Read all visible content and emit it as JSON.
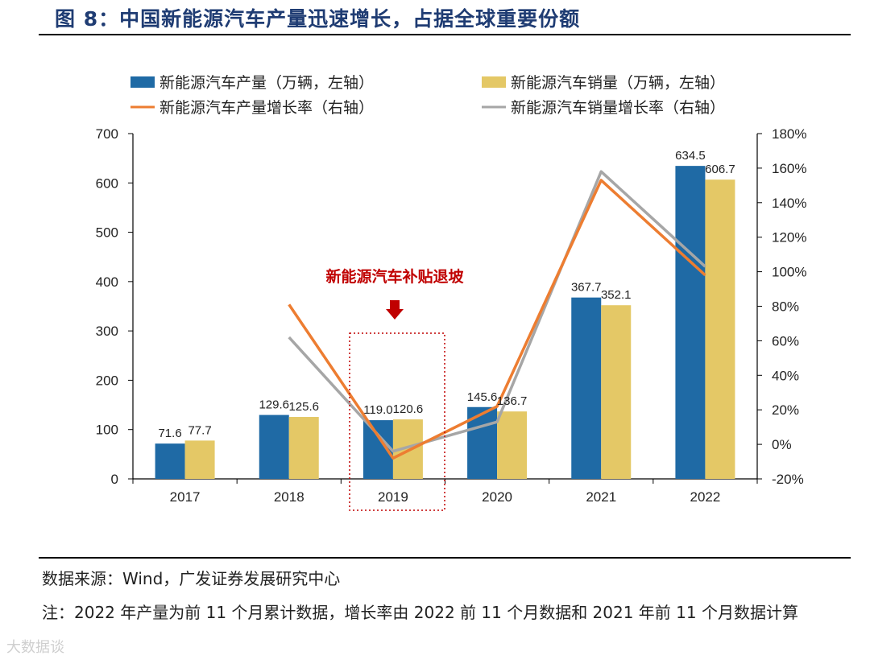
{
  "figure_title": "图 8：中国新能源汽车产量迅速增长，占据全球重要份额",
  "source": "数据来源：Wind，广发证券发展研究中心",
  "note": "注：2022 年产量为前 11 个月累计数据，增长率由 2022 前 11 个月数据和 2021 年前 11 个月数据计算",
  "watermark": "大数据谈",
  "colors": {
    "production_bar": "#1f6aa5",
    "sales_bar": "#e4c866",
    "production_growth": "#ed7d31",
    "sales_growth": "#a6a6a6",
    "annotation": "#c00000",
    "title": "#1f3c73"
  },
  "chart_data": {
    "type": "bar",
    "categories": [
      "2017",
      "2018",
      "2019",
      "2020",
      "2021",
      "2022"
    ],
    "series": [
      {
        "name": "新能源汽车产量（万辆，左轴）",
        "kind": "bar",
        "axis": "left",
        "values": [
          71.6,
          129.6,
          119.0,
          145.6,
          367.7,
          634.5
        ],
        "labels": [
          "71.6",
          "129.6",
          "119.0",
          "145.6",
          "367.7",
          "634.5"
        ]
      },
      {
        "name": "新能源汽车销量（万辆，左轴）",
        "kind": "bar",
        "axis": "left",
        "values": [
          77.7,
          125.6,
          120.6,
          136.7,
          352.1,
          606.7
        ],
        "labels": [
          "77.7",
          "125.6",
          "120.6",
          "136.7",
          "352.1",
          "606.7"
        ]
      },
      {
        "name": "新能源汽车产量增长率（右轴）",
        "kind": "line",
        "axis": "right",
        "values": [
          null,
          81,
          -8,
          22,
          153,
          98
        ]
      },
      {
        "name": "新能源汽车销量增长率（右轴）",
        "kind": "line",
        "axis": "right",
        "values": [
          null,
          62,
          -4,
          13,
          158,
          103
        ]
      }
    ],
    "y_left": {
      "min": 0,
      "max": 700,
      "step": 100,
      "tick_labels": [
        "0",
        "100",
        "200",
        "300",
        "400",
        "500",
        "600",
        "700"
      ]
    },
    "y_right": {
      "min": -20,
      "max": 180,
      "step": 20,
      "tick_labels": [
        "-20%",
        "0%",
        "20%",
        "40%",
        "60%",
        "80%",
        "100%",
        "120%",
        "140%",
        "160%",
        "180%"
      ]
    },
    "annotation": {
      "text": "新能源汽车补贴退坡",
      "category": "2019"
    },
    "legend": "top"
  }
}
